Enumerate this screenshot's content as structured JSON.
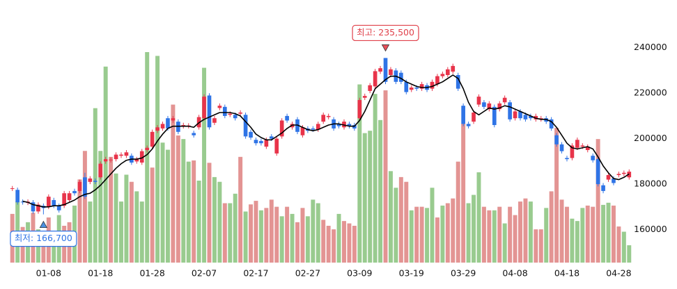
{
  "chart_data": {
    "type": "candlestick",
    "categories": [
      null,
      null,
      null,
      null,
      null,
      null,
      null,
      "01-08",
      null,
      null,
      null,
      null,
      null,
      null,
      null,
      null,
      null,
      "01-18",
      null,
      null,
      null,
      null,
      null,
      null,
      null,
      null,
      null,
      "01-28",
      null,
      null,
      null,
      null,
      null,
      null,
      null,
      null,
      null,
      "02-07",
      null,
      null,
      null,
      null,
      null,
      null,
      null,
      null,
      null,
      "02-17",
      null,
      null,
      null,
      null,
      null,
      null,
      null,
      null,
      null,
      "02-27",
      null,
      null,
      null,
      null,
      null,
      null,
      null,
      null,
      null,
      "03-09",
      null,
      null,
      null,
      null,
      null,
      null,
      null,
      null,
      null,
      "03-19",
      null,
      null,
      null,
      null,
      null,
      null,
      null,
      null,
      null,
      "03-29",
      null,
      null,
      null,
      null,
      null,
      null,
      null,
      null,
      null,
      "04-08",
      null,
      null,
      null,
      null,
      null,
      null,
      null,
      null,
      null,
      "04-18",
      null,
      null,
      null,
      null,
      null,
      null,
      null,
      null,
      null,
      "04-28",
      null,
      null
    ],
    "open": [
      178000,
      177500,
      172300,
      171800,
      172000,
      168000,
      170500,
      170000,
      173000,
      170500,
      170500,
      173000,
      177000,
      177000,
      183000,
      181000,
      181500,
      183000,
      190000,
      190500,
      191000,
      192500,
      192500,
      192500,
      190000,
      189500,
      195000,
      196500,
      203500,
      204500,
      209000,
      208000,
      207500,
      205500,
      205500,
      202500,
      205000,
      209000,
      219000,
      207000,
      213500,
      214000,
      210500,
      210500,
      211000,
      210500,
      203000,
      199500,
      199000,
      196500,
      201000,
      193500,
      201000,
      210000,
      205000,
      208500,
      201500,
      204500,
      204500,
      204000,
      207500,
      209500,
      208500,
      206500,
      205000,
      206500,
      206000,
      209000,
      218000,
      221000,
      223000,
      229500,
      235500,
      228000,
      230000,
      229000,
      225000,
      221500,
      222500,
      222000,
      223500,
      222000,
      224000,
      227500,
      228000,
      229500,
      228000,
      214500,
      206500,
      207500,
      215000,
      216000,
      213000,
      214000,
      213000,
      216000,
      216000,
      209000,
      212000,
      210500,
      210000,
      208500,
      208500,
      209000,
      208500,
      201500,
      197500,
      191500,
      191500,
      196000,
      196500,
      195000,
      192500,
      191000,
      179500,
      182000,
      182500,
      184000,
      184500,
      183000
    ],
    "high": [
      179200,
      178500,
      173300,
      173300,
      173000,
      172000,
      171500,
      175500,
      174000,
      171500,
      177000,
      177000,
      178000,
      182000,
      185000,
      183500,
      182500,
      190000,
      192000,
      191800,
      194000,
      194000,
      195000,
      193500,
      192000,
      195500,
      197000,
      204000,
      206000,
      207500,
      210000,
      210000,
      208500,
      207000,
      206800,
      203500,
      210500,
      219500,
      220000,
      210000,
      215500,
      215000,
      212000,
      211500,
      212500,
      211500,
      204000,
      200500,
      200000,
      200500,
      202000,
      201000,
      209000,
      211000,
      207500,
      209500,
      206000,
      205500,
      205500,
      207500,
      211500,
      211000,
      209500,
      207500,
      208500,
      207500,
      207000,
      218000,
      219800,
      224500,
      230700,
      232000,
      235500,
      231500,
      231000,
      230000,
      226000,
      223500,
      223500,
      225000,
      224500,
      226000,
      228500,
      229500,
      231500,
      233000,
      229000,
      215500,
      207500,
      212500,
      219500,
      217000,
      216500,
      215000,
      216500,
      219000,
      217000,
      213000,
      213000,
      211500,
      211000,
      211000,
      210000,
      210000,
      209500,
      202500,
      198500,
      192500,
      198000,
      200500,
      198000,
      197500,
      193500,
      192000,
      180500,
      185000,
      183500,
      185500,
      186000,
      186500
    ],
    "low": [
      177000,
      171000,
      171000,
      170800,
      167000,
      167000,
      166700,
      169000,
      169500,
      167500,
      169500,
      172000,
      175000,
      176000,
      173500,
      180000,
      180000,
      182000,
      189000,
      189500,
      190000,
      191500,
      191500,
      188500,
      189000,
      188500,
      194000,
      195500,
      202500,
      203500,
      203500,
      207000,
      202000,
      204500,
      204500,
      200500,
      204000,
      208000,
      204000,
      206000,
      212500,
      209000,
      209500,
      208000,
      210000,
      200000,
      199500,
      197000,
      197000,
      195500,
      199000,
      192500,
      200000,
      207000,
      204000,
      202000,
      200500,
      202500,
      203000,
      203000,
      206500,
      208500,
      203500,
      204500,
      204000,
      204500,
      203500,
      208000,
      217000,
      220000,
      222000,
      228500,
      224000,
      227000,
      224000,
      224000,
      219500,
      220500,
      221000,
      221000,
      220500,
      221000,
      223000,
      226500,
      227000,
      228500,
      221000,
      205500,
      204500,
      206500,
      214000,
      213000,
      212000,
      205000,
      212000,
      215000,
      207500,
      208000,
      208000,
      207500,
      208000,
      207500,
      207500,
      206500,
      203500,
      196500,
      193500,
      190000,
      190500,
      195000,
      195500,
      194000,
      189500,
      179000,
      176000,
      181000,
      179500,
      183000,
      183500,
      182000
    ],
    "close": [
      178200,
      172000,
      172000,
      172300,
      168000,
      171000,
      169500,
      174500,
      170500,
      168500,
      176000,
      176000,
      176000,
      181000,
      174500,
      182500,
      181000,
      189000,
      191000,
      190800,
      193000,
      193000,
      194000,
      189500,
      191000,
      194500,
      196000,
      203000,
      205000,
      206500,
      204500,
      209000,
      203000,
      206000,
      205800,
      201500,
      209500,
      218500,
      205000,
      209000,
      214500,
      210000,
      211000,
      209000,
      211500,
      201000,
      200500,
      198000,
      198000,
      199500,
      200000,
      200000,
      208000,
      208000,
      206500,
      203000,
      205000,
      203500,
      204000,
      206500,
      210500,
      210000,
      204500,
      205500,
      207500,
      205500,
      204500,
      217000,
      218800,
      223500,
      229700,
      231000,
      225000,
      230500,
      225000,
      225000,
      220500,
      222500,
      222000,
      224000,
      221500,
      225000,
      227500,
      228500,
      230500,
      232000,
      222000,
      206500,
      205500,
      211500,
      218500,
      214000,
      215500,
      206000,
      215500,
      218000,
      208500,
      212000,
      209000,
      208500,
      209000,
      210000,
      209000,
      207500,
      204500,
      197500,
      194500,
      191000,
      197000,
      199500,
      197000,
      196500,
      190500,
      180000,
      177000,
      184000,
      180500,
      184500,
      185000,
      185500
    ],
    "up_color": "#e8344a",
    "down_color": "#2f74e6",
    "ma": {
      "color": "#000000",
      "values": [
        null,
        null,
        172500,
        172000,
        171000,
        170500,
        170000,
        170000,
        170500,
        170500,
        171000,
        172000,
        173000,
        174500,
        175500,
        176000,
        177500,
        179500,
        182000,
        184500,
        187000,
        189000,
        190500,
        191000,
        191000,
        191500,
        193000,
        195500,
        199000,
        202000,
        204500,
        205500,
        205500,
        205500,
        205500,
        205000,
        207000,
        208500,
        209500,
        210500,
        211500,
        211500,
        211500,
        211000,
        210000,
        207500,
        205000,
        202000,
        200500,
        199500,
        199500,
        201000,
        202500,
        204500,
        206000,
        206000,
        205000,
        204000,
        203500,
        204000,
        205000,
        206000,
        206500,
        206500,
        206000,
        205500,
        205500,
        208000,
        212000,
        217000,
        222000,
        224000,
        226000,
        227500,
        227500,
        226500,
        225000,
        224000,
        223000,
        222500,
        222500,
        223000,
        224000,
        225000,
        226500,
        228000,
        226500,
        222000,
        216000,
        212000,
        210500,
        212000,
        213500,
        213000,
        213500,
        214500,
        214000,
        213000,
        212000,
        211000,
        210000,
        209000,
        208500,
        208500,
        207500,
        205000,
        201500,
        198000,
        196000,
        195500,
        196000,
        196500,
        195500,
        192000,
        188000,
        185000,
        182500,
        182000,
        183000,
        184500
      ]
    },
    "volume": {
      "axis": "y2",
      "values": [
        20.5,
        25.7,
        15,
        17,
        21,
        14,
        11,
        19,
        12.5,
        20,
        15.5,
        17,
        24,
        35,
        47,
        25.7,
        65,
        47,
        82.5,
        44.5,
        37.5,
        25.7,
        37,
        34,
        30,
        25.7,
        88.6,
        40,
        87,
        50.5,
        47.5,
        66.5,
        53.5,
        52,
        42.5,
        43,
        34.5,
        82,
        42,
        36,
        34,
        25,
        25,
        29,
        44.5,
        21.5,
        24.5,
        26,
        22,
        23,
        26.5,
        23.5,
        19.5,
        23.5,
        20.5,
        17,
        23,
        19.5,
        26.5,
        25,
        18,
        15.5,
        14,
        20.5,
        17.5,
        16.5,
        15.5,
        75,
        54.5,
        55.5,
        71,
        60,
        72.5,
        38.5,
        31.5,
        36,
        34,
        22,
        23.5,
        23.5,
        23,
        31.5,
        19,
        24,
        25,
        27,
        42.5,
        58.5,
        25,
        28.5,
        38,
        23.5,
        22,
        22,
        23.5,
        16.5,
        23.5,
        20,
        25.7,
        27,
        25.7,
        14,
        14,
        23,
        30,
        56.7,
        26.5,
        23.5,
        18.5,
        17.5,
        23,
        24,
        23.5,
        52,
        24.3,
        25.2,
        24,
        15.2,
        13,
        7.3
      ],
      "colors": [
        "#e39493",
        "#99cb8f",
        "#e39493",
        "#99cb8f",
        "#e39493",
        "#99cb8f",
        "#e39493",
        "#e39493",
        "#99cb8f",
        "#99cb8f",
        "#e39493",
        "#e39493",
        "#99cb8f",
        "#e39493",
        "#e39493",
        "#99cb8f",
        "#99cb8f",
        "#99cb8f",
        "#99cb8f",
        "#e39493",
        "#99cb8f",
        "#99cb8f",
        "#99cb8f",
        "#e39493",
        "#99cb8f",
        "#99cb8f",
        "#99cb8f",
        "#e39493",
        "#99cb8f",
        "#99cb8f",
        "#99cb8f",
        "#e39493",
        "#e39493",
        "#99cb8f",
        "#99cb8f",
        "#e39493",
        "#99cb8f",
        "#99cb8f",
        "#e39493",
        "#99cb8f",
        "#99cb8f",
        "#e39493",
        "#99cb8f",
        "#99cb8f",
        "#e39493",
        "#99cb8f",
        "#e39493",
        "#e39493",
        "#99cb8f",
        "#e39493",
        "#e39493",
        "#e39493",
        "#99cb8f",
        "#e39493",
        "#99cb8f",
        "#e39493",
        "#e39493",
        "#99cb8f",
        "#99cb8f",
        "#99cb8f",
        "#e39493",
        "#e39493",
        "#e39493",
        "#99cb8f",
        "#e39493",
        "#e39493",
        "#e39493",
        "#99cb8f",
        "#99cb8f",
        "#99cb8f",
        "#99cb8f",
        "#99cb8f",
        "#e39493",
        "#99cb8f",
        "#99cb8f",
        "#e39493",
        "#e39493",
        "#99cb8f",
        "#e39493",
        "#e39493",
        "#99cb8f",
        "#99cb8f",
        "#e39493",
        "#99cb8f",
        "#e39493",
        "#e39493",
        "#e39493",
        "#e39493",
        "#99cb8f",
        "#99cb8f",
        "#99cb8f",
        "#e39493",
        "#e39493",
        "#99cb8f",
        "#e39493",
        "#99cb8f",
        "#e39493",
        "#e39493",
        "#e39493",
        "#e39493",
        "#99cb8f",
        "#e39493",
        "#e39493",
        "#99cb8f",
        "#e39493",
        "#e39493",
        "#e39493",
        "#e39493",
        "#99cb8f",
        "#99cb8f",
        "#99cb8f",
        "#e39493",
        "#e39493",
        "#e39493",
        "#99cb8f",
        "#99cb8f",
        "#e39493",
        "#e39493",
        "#99cb8f",
        "#99cb8f"
      ]
    },
    "ylim": [
      145500,
      250000
    ],
    "yticks": [
      160000,
      180000,
      200000,
      220000,
      240000
    ],
    "y2lim": [
      0,
      100
    ],
    "annotations": [
      {
        "text": "최고: 235,500",
        "value": 235500,
        "color": "#e0404a",
        "marker_color": "#e8505a"
      },
      {
        "text": "최저: 166,700",
        "value": 166700,
        "color": "#2f74e6",
        "marker_color": "#4a90e0"
      }
    ]
  }
}
